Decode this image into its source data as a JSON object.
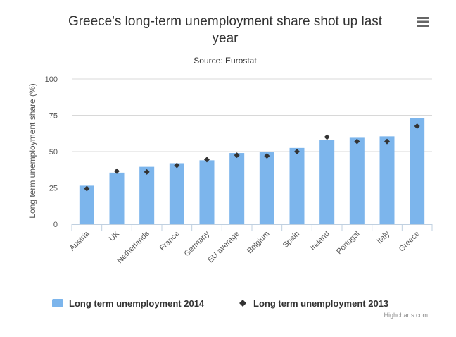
{
  "chart_data": {
    "type": "bar",
    "title_lines": [
      "Greece's long-term unemployment share shot up last",
      "year"
    ],
    "subtitle": "Source: Eurostat",
    "ylabel": "Long term unemployment share (%)",
    "xlabel": "",
    "categories": [
      "Austria",
      "UK",
      "Netherlands",
      "France",
      "Germany",
      "EU average",
      "Belgium",
      "Spain",
      "Ireland",
      "Portugal",
      "Italy",
      "Greece"
    ],
    "ylim": [
      0,
      100
    ],
    "yticks": [
      0,
      25,
      50,
      75,
      100
    ],
    "grid": true,
    "legend_position": "bottom",
    "series": [
      {
        "name": "Long term unemployment 2014",
        "kind": "bar",
        "color": "#7cb5ec",
        "values": [
          26.5,
          35.5,
          39.5,
          42,
          44,
          49,
          49.5,
          52.5,
          58,
          59.5,
          60.5,
          73
        ]
      },
      {
        "name": "Long term unemployment 2013",
        "kind": "scatter",
        "marker": "diamond",
        "color": "#333333",
        "values": [
          24.5,
          36.5,
          36,
          40.5,
          44.5,
          47.5,
          47,
          50,
          60,
          57,
          57,
          67.5
        ]
      }
    ]
  },
  "credit": "Highcharts.com",
  "menu_icon": "hamburger-menu-icon"
}
